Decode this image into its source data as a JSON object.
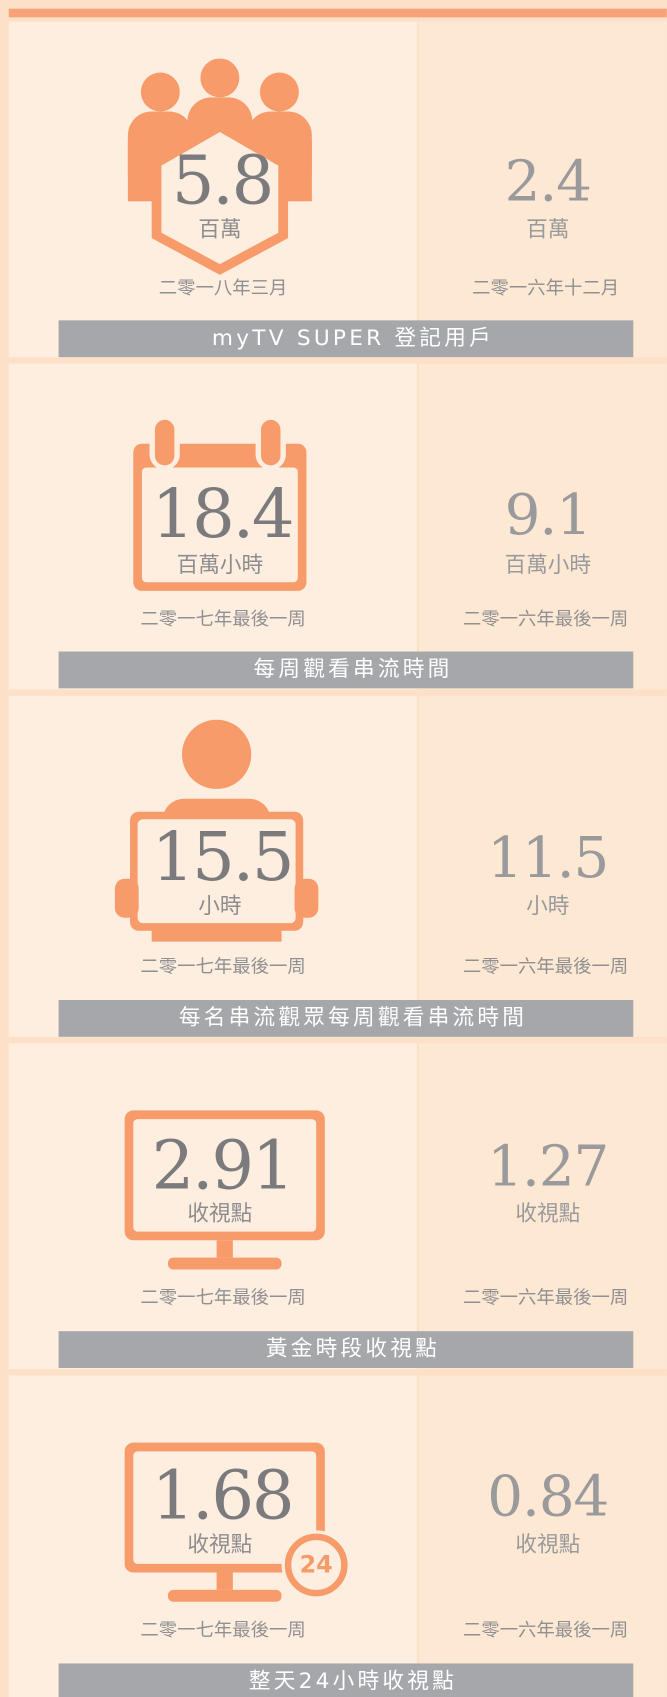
{
  "panels": [
    {
      "title": "myTV SUPER 登記用戶",
      "current": {
        "value": 5.8,
        "unit": "百萬",
        "date": "二零一八年三月"
      },
      "previous": {
        "value": 2.4,
        "unit": "百萬",
        "date": "二零一六年十二月"
      }
    },
    {
      "title": "每周觀看串流時間",
      "current": {
        "value": 18.4,
        "unit": "百萬小時",
        "date": "二零一七年最後一周"
      },
      "previous": {
        "value": 9.1,
        "unit": "百萬小時",
        "date": "二零一六年最後一周"
      }
    },
    {
      "title": "每名串流觀眾每周觀看串流時間",
      "current": {
        "value": 15.5,
        "unit": "小時",
        "date": "二零一七年最後一周"
      },
      "previous": {
        "value": 11.5,
        "unit": "小時",
        "date": "二零一六年最後一周"
      }
    },
    {
      "title": "黃金時段收視點",
      "current": {
        "value": 2.91,
        "unit": "收視點",
        "date": "二零一七年最後一周"
      },
      "previous": {
        "value": 1.27,
        "unit": "收視點",
        "date": "二零一六年最後一周"
      }
    },
    {
      "title": "整天24小時收視點",
      "badge": 24,
      "current": {
        "value": 1.68,
        "unit": "收視點",
        "date": "二零一七年最後一周"
      },
      "previous": {
        "value": 0.84,
        "unit": "收視點",
        "date": "二零一六年最後一周"
      }
    }
  ]
}
